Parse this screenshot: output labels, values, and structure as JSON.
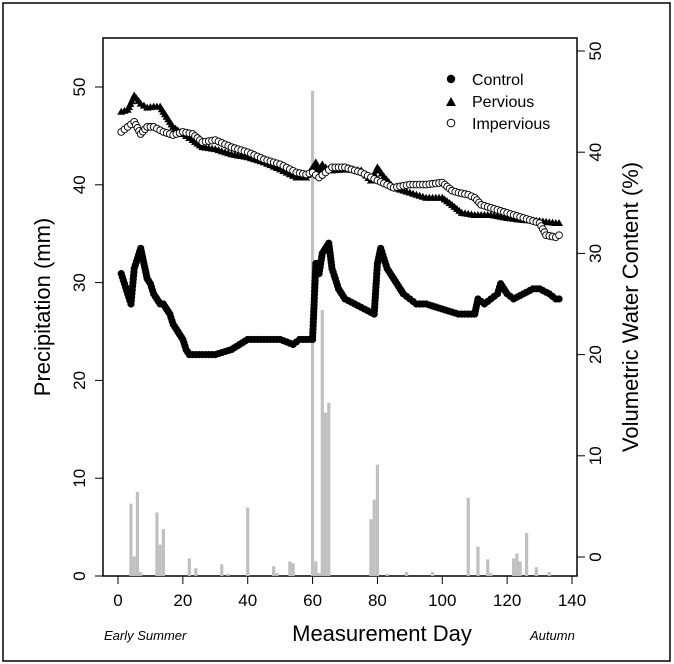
{
  "chart_data": {
    "type": "scatter",
    "xlabel": "Measurement Day",
    "ylabel_left": "Precipitation (mm)",
    "ylabel_right": "Volumetric Water Content (%)",
    "season_labels": {
      "start": "Early Summer",
      "end": "Autumn"
    },
    "x_range": [
      0,
      140
    ],
    "y_left_range": [
      0,
      55
    ],
    "y_right_range": [
      -2,
      52
    ],
    "x_ticks": [
      0,
      20,
      40,
      60,
      80,
      100,
      120,
      140
    ],
    "y_left_ticks": [
      0,
      10,
      20,
      30,
      40,
      50
    ],
    "y_right_ticks": [
      0,
      10,
      20,
      30,
      40,
      50
    ],
    "grid": false,
    "legend_position": "top-right",
    "precipitation": {
      "axis": "left",
      "color": "#c0c0c0",
      "days": [
        4,
        5,
        6,
        7,
        12,
        13,
        14,
        22,
        24,
        32,
        34,
        40,
        48,
        49,
        53,
        54,
        60,
        61,
        62,
        63,
        64,
        65,
        78,
        79,
        80,
        83,
        89,
        97,
        108,
        111,
        114,
        115,
        122,
        123,
        124,
        126,
        129,
        133
      ],
      "values": [
        7.4,
        2.0,
        8.6,
        0.4,
        6.5,
        3.2,
        4.8,
        1.8,
        0.8,
        1.2,
        0.2,
        7.0,
        1.0,
        0.3,
        1.5,
        1.3,
        49.6,
        1.5,
        0.3,
        27.2,
        16.7,
        17.7,
        5.8,
        7.8,
        11.4,
        0.2,
        0.4,
        0.4,
        8.0,
        3.0,
        1.7,
        0.3,
        1.8,
        2.3,
        1.5,
        4.4,
        0.9,
        0.4
      ]
    },
    "series": [
      {
        "name": "Control",
        "axis": "right",
        "marker": "filled-circle",
        "x": [
          1,
          2,
          3,
          4,
          5,
          6,
          7,
          8,
          9,
          10,
          11,
          12,
          13,
          14,
          15,
          16,
          17,
          18,
          19,
          20,
          21,
          22,
          25,
          30,
          35,
          40,
          45,
          50,
          54,
          56,
          58,
          59,
          60,
          61,
          62,
          63,
          64,
          65,
          66,
          67,
          68,
          70,
          73,
          76,
          79,
          80,
          81,
          82,
          83,
          84,
          86,
          88,
          90,
          92,
          95,
          100,
          105,
          110,
          111,
          113,
          115,
          117,
          118,
          119,
          120,
          122,
          125,
          128,
          130,
          133,
          135,
          136
        ],
        "values": [
          28.0,
          27.0,
          26.0,
          25.0,
          28.5,
          29.5,
          30.5,
          29.0,
          27.5,
          27.0,
          26.0,
          25.5,
          25.0,
          25.0,
          24.5,
          24.0,
          23.0,
          22.5,
          22.0,
          21.5,
          20.5,
          20.0,
          20.0,
          20.0,
          20.5,
          21.5,
          21.5,
          21.5,
          21.0,
          21.5,
          21.5,
          21.5,
          21.5,
          29.0,
          28.0,
          30.0,
          30.5,
          31.0,
          28.5,
          27.5,
          26.5,
          25.5,
          25.0,
          24.5,
          24.0,
          29.0,
          30.5,
          29.5,
          28.5,
          28.0,
          27.0,
          26.0,
          25.5,
          25.0,
          25.0,
          24.5,
          24.0,
          24.0,
          25.5,
          25.0,
          25.5,
          26.0,
          27.0,
          26.5,
          26.0,
          25.5,
          26.0,
          26.5,
          26.5,
          26.0,
          25.5,
          25.5
        ]
      },
      {
        "name": "Pervious",
        "axis": "right",
        "marker": "filled-triangle",
        "x": [
          1,
          3,
          5,
          7,
          9,
          11,
          13,
          15,
          17,
          20,
          23,
          26,
          30,
          35,
          40,
          45,
          50,
          55,
          58,
          60,
          61,
          62,
          63,
          64,
          66,
          70,
          75,
          78,
          80,
          82,
          85,
          90,
          95,
          100,
          103,
          106,
          110,
          115,
          120,
          125,
          130,
          135,
          136
        ],
        "values": [
          44.0,
          44.2,
          45.6,
          44.8,
          44.4,
          44.5,
          44.5,
          43.5,
          42.5,
          41.8,
          41.2,
          40.5,
          40.3,
          39.8,
          39.5,
          39.0,
          38.3,
          37.5,
          37.5,
          38.5,
          39.0,
          38.2,
          38.8,
          38.5,
          38.2,
          38.3,
          38.2,
          37.2,
          38.5,
          37.6,
          36.5,
          36.0,
          35.5,
          35.5,
          34.8,
          34.0,
          33.8,
          33.8,
          33.5,
          33.3,
          33.2,
          33.0,
          33.0
        ]
      },
      {
        "name": "Impervious",
        "axis": "right",
        "marker": "open-circle",
        "x": [
          1,
          3,
          5,
          7,
          9,
          11,
          14,
          17,
          20,
          23,
          26,
          30,
          35,
          40,
          45,
          50,
          55,
          58,
          60,
          62,
          64,
          66,
          70,
          75,
          80,
          85,
          90,
          95,
          100,
          103,
          105,
          108,
          110,
          112,
          115,
          120,
          125,
          130,
          132,
          135,
          136
        ],
        "values": [
          42.0,
          42.5,
          43.0,
          41.8,
          42.5,
          42.5,
          42.0,
          41.7,
          42.0,
          41.8,
          41.0,
          41.2,
          40.5,
          40.0,
          39.3,
          38.8,
          38.0,
          37.8,
          38.0,
          37.5,
          38.0,
          38.5,
          38.5,
          38.0,
          37.2,
          36.5,
          36.8,
          36.8,
          37.0,
          36.2,
          36.0,
          35.8,
          35.5,
          34.8,
          34.5,
          34.0,
          33.5,
          33.0,
          31.8,
          31.6,
          31.8
        ]
      }
    ]
  }
}
